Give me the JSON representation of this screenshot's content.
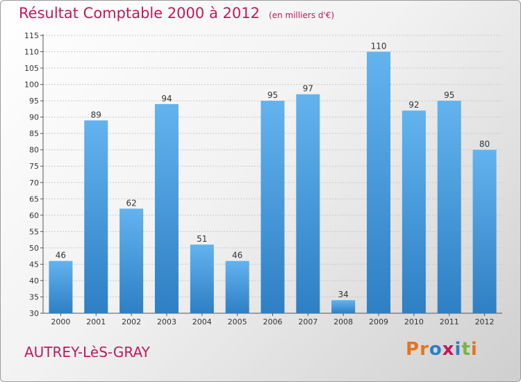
{
  "header": {
    "title": "Résultat Comptable 2000 à 2012",
    "unit": "(en milliers d'€)"
  },
  "footer": {
    "commune": "AUTREY-LèS-GRAY",
    "logo_text": "Proxiti",
    "logo_colors": [
      "#e8731c",
      "#e8731c",
      "#2c7fc7",
      "#c2185b",
      "#2c7fc7",
      "#7cb342",
      "#e8731c"
    ]
  },
  "colors": {
    "bar": "#4a9fe0",
    "bar_light": "#62b3ee",
    "bar_dark": "#2e7fc4",
    "title": "#c2185b",
    "axis_text": "#333333"
  },
  "chart_data": {
    "type": "bar",
    "title": "Résultat Comptable 2000 à 2012",
    "subtitle": "(en milliers d'€)",
    "xlabel": "",
    "ylabel": "",
    "categories": [
      "2000",
      "2001",
      "2002",
      "2003",
      "2004",
      "2005",
      "2006",
      "2007",
      "2008",
      "2009",
      "2010",
      "2011",
      "2012"
    ],
    "values": [
      46,
      89,
      62,
      94,
      51,
      46,
      95,
      97,
      34,
      110,
      92,
      95,
      80
    ],
    "ylim": [
      30,
      115
    ],
    "yticks": [
      30,
      35,
      40,
      45,
      50,
      55,
      60,
      65,
      70,
      75,
      80,
      85,
      90,
      95,
      100,
      105,
      110,
      115
    ],
    "grid": true,
    "legend": "none"
  }
}
